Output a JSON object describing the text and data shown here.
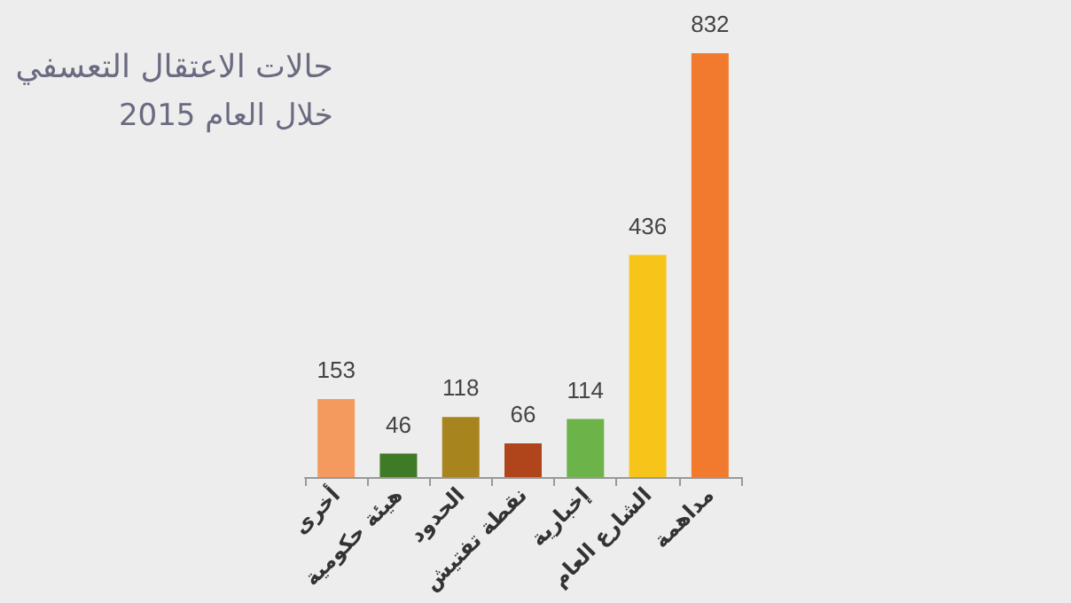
{
  "chart_data": {
    "type": "bar",
    "title": "حالات الاعتقال التعسفي",
    "subtitle": "خلال العام 2015",
    "categories": [
      "أخرى",
      "هيئة حكومية",
      "الحدود",
      "نقطة تفتيش",
      "إخبارية",
      "الشارع العام",
      "مداهمة"
    ],
    "values": [
      153,
      46,
      118,
      66,
      114,
      436,
      832
    ],
    "colors": [
      "#f59a5e",
      "#3f7a26",
      "#a8841e",
      "#b0441a",
      "#6cb44a",
      "#f7c41a",
      "#f27a2e"
    ],
    "data_labels": true
  }
}
